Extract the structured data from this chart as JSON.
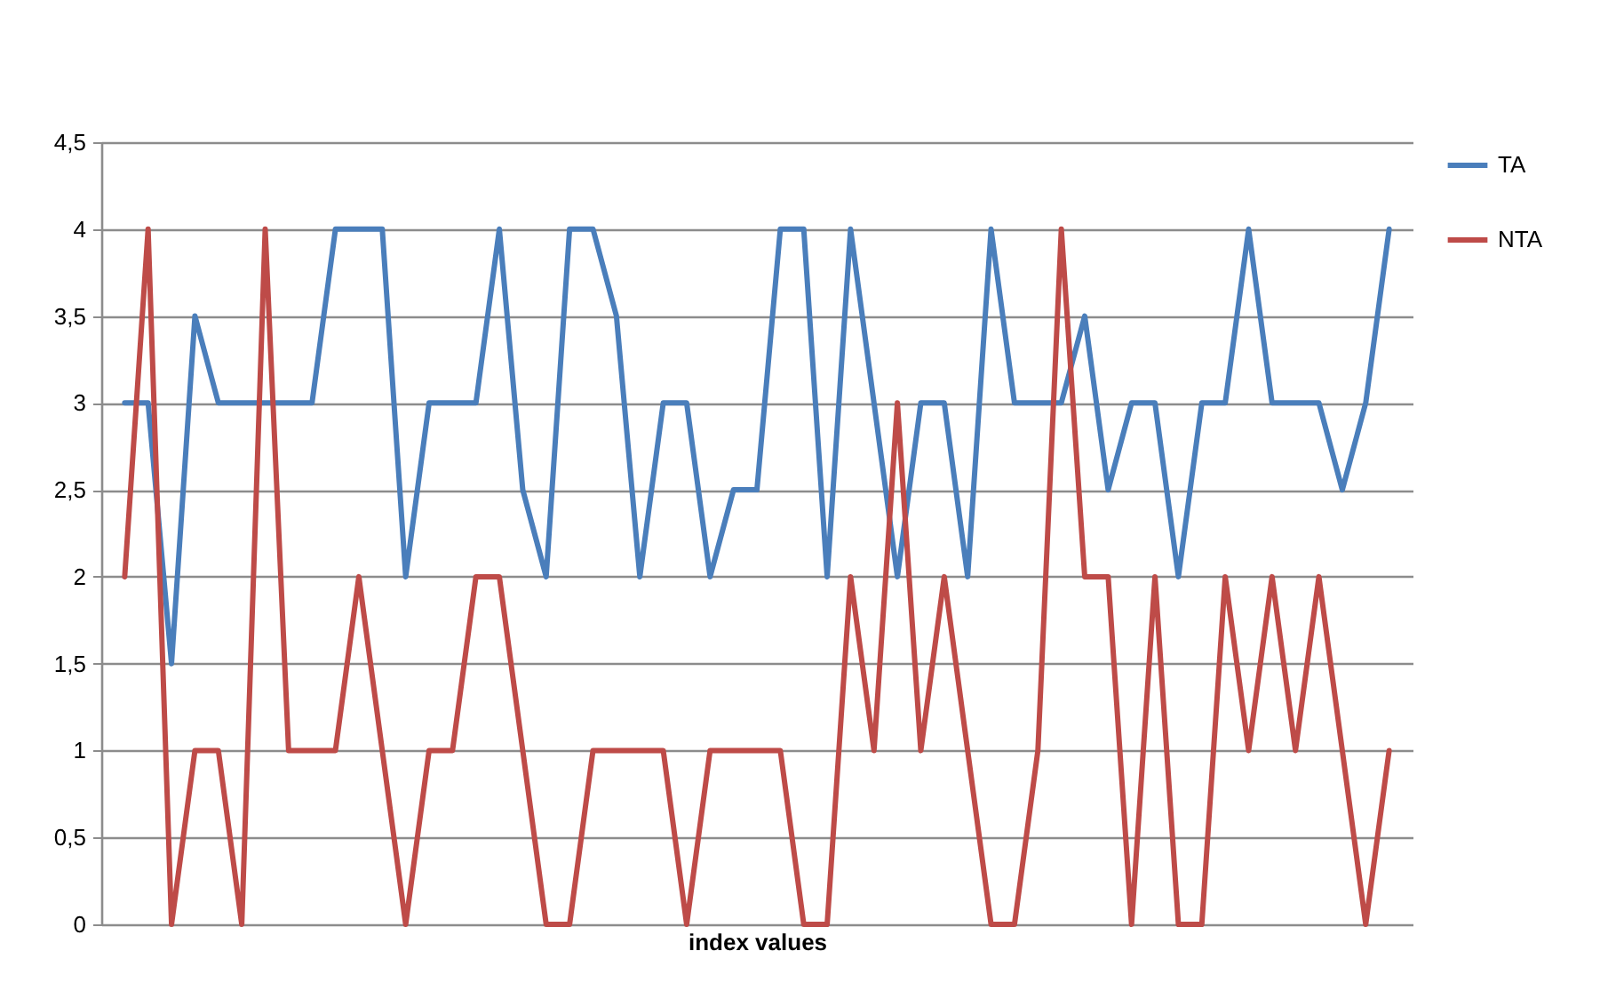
{
  "chart_data": {
    "type": "line",
    "xlabel": "index values",
    "categories": [
      null,
      null,
      null,
      null,
      null,
      null,
      null,
      null,
      null,
      null,
      null,
      null,
      null,
      null,
      null,
      null,
      null,
      null,
      null,
      null,
      null,
      null,
      null,
      null,
      null,
      null,
      null,
      null,
      null,
      null,
      null,
      null,
      null,
      null,
      null,
      null,
      null,
      null,
      null,
      null,
      null,
      null,
      null,
      null,
      null,
      null,
      null,
      null,
      null,
      null,
      null,
      null,
      null,
      null,
      null
    ],
    "series": [
      {
        "name": "TA",
        "color": "#4a7ebb",
        "values": [
          3,
          3,
          1.5,
          3.5,
          3,
          3,
          3,
          3,
          3,
          4,
          4,
          4,
          2,
          3,
          3,
          3,
          4,
          2.5,
          2,
          4,
          4,
          3.5,
          2,
          3,
          3,
          2,
          2.5,
          2.5,
          4,
          4,
          2,
          4,
          3,
          2,
          3,
          3,
          2,
          4,
          3,
          3,
          3,
          3.5,
          2.5,
          3,
          3,
          2,
          3,
          3,
          4,
          3,
          3,
          3,
          2.5,
          3,
          4
        ]
      },
      {
        "name": "NTA",
        "color": "#be4b48",
        "values": [
          2,
          4,
          0,
          1,
          1,
          0,
          4,
          1,
          1,
          1,
          2,
          1,
          0,
          1,
          1,
          2,
          2,
          1,
          0,
          0,
          1,
          1,
          1,
          1,
          0,
          1,
          1,
          1,
          1,
          0,
          0,
          2,
          1,
          3,
          1,
          2,
          1,
          0,
          0,
          1,
          4,
          2,
          2,
          0,
          2,
          0,
          0,
          2,
          1,
          2,
          1,
          2,
          1,
          0,
          1
        ]
      }
    ],
    "ylim": [
      0,
      4.5
    ],
    "yticks": [
      0,
      {
        "value": 0.5,
        "label": "0,5"
      },
      1,
      {
        "value": 1.5,
        "label": "1,5"
      },
      2,
      {
        "value": 2.5,
        "label": "2,5"
      },
      3,
      {
        "value": 3.5,
        "label": "3,5"
      },
      4,
      {
        "value": 4.5,
        "label": "4,5"
      }
    ],
    "grid": "y",
    "legend": "right",
    "line_style": "solid",
    "marker": "none"
  }
}
